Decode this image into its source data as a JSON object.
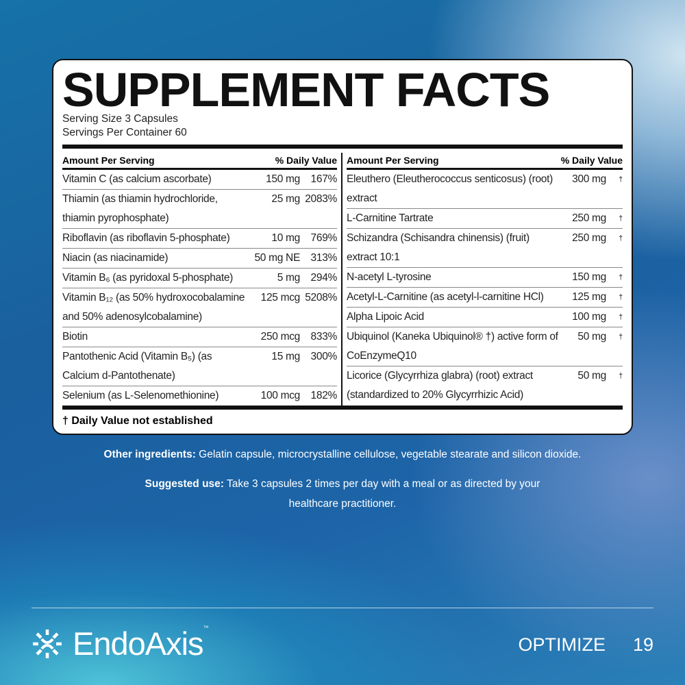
{
  "title": "SUPPLEMENT FACTS",
  "serving_size": "Serving Size 3 Capsules",
  "servings_per_container": "Servings Per Container 60",
  "header": {
    "amount": "Amount Per Serving",
    "dv": "% Daily Value"
  },
  "left": [
    {
      "name": "Vitamin C  (as calcium ascorbate)",
      "amount": "150 mg",
      "dv": "167%"
    },
    {
      "name": "Thiamin (as thiamin hydrochloride, thiamin pyrophosphate)",
      "amount": "25 mg",
      "dv": "2083%"
    },
    {
      "name": "Riboflavin (as riboflavin 5-phosphate)",
      "amount": "10 mg",
      "dv": "769%"
    },
    {
      "name": "Niacin (as niacinamide)",
      "amount": "50 mg NE",
      "dv": "313%"
    },
    {
      "name": "Vitamin B₆ (as pyridoxal 5-phosphate)",
      "amount": "5 mg",
      "dv": "294%"
    },
    {
      "name": "Vitamin B₁₂ (as 50% hydroxocobalamine and 50% adenosylcobalamine)",
      "amount": "125 mcg",
      "dv": "5208%"
    },
    {
      "name": "Biotin",
      "amount": "250 mcg",
      "dv": "833%"
    },
    {
      "name": "Pantothenic Acid (Vitamin B₅) (as Calcium d-Pantothenate)",
      "amount": "15 mg",
      "dv": "300%"
    },
    {
      "name": "Selenium (as L-Selenomethionine)",
      "amount": "100 mcg",
      "dv": "182%"
    }
  ],
  "right": [
    {
      "name": "Eleuthero (Eleutherococcus senticosus) (root) extract",
      "amount": "300 mg",
      "dv": "†"
    },
    {
      "name": "L-Carnitine Tartrate",
      "amount": "250 mg",
      "dv": "†"
    },
    {
      "name": "Schizandra (Schisandra chinensis) (fruit) extract 10:1",
      "amount": "250 mg",
      "dv": "†"
    },
    {
      "name": "N-acetyl L-tyrosine",
      "amount": "150 mg",
      "dv": "†"
    },
    {
      "name": "Acetyl-L-Carnitine (as acetyl-l-carnitine HCl)",
      "amount": "125 mg",
      "dv": "†"
    },
    {
      "name": "Alpha Lipoic Acid",
      "amount": "100 mg",
      "dv": "†"
    },
    {
      "name": "Ubiquinol (Kaneka Ubiquinol® †) active form of CoEnzymeQ10",
      "amount": "50 mg",
      "dv": "†"
    },
    {
      "name": "Licorice (Glycyrrhiza glabra) (root) extract (standardized to 20% Glycyrrhizic Acid)",
      "amount": "50 mg",
      "dv": "†"
    }
  ],
  "footnote": "† Daily Value not established",
  "other": {
    "label": "Other ingredients:",
    "text": " Gelatin capsule, microcrystalline cellulose, vegetable stearate and silicon dioxide."
  },
  "use": {
    "label": "Suggested use:",
    "text": " Take 3 capsules 2 times per day with a meal or as directed by your healthcare practitioner."
  },
  "brand": "EndoAxis",
  "tm": "™",
  "section": "OPTIMIZE",
  "page": "19"
}
